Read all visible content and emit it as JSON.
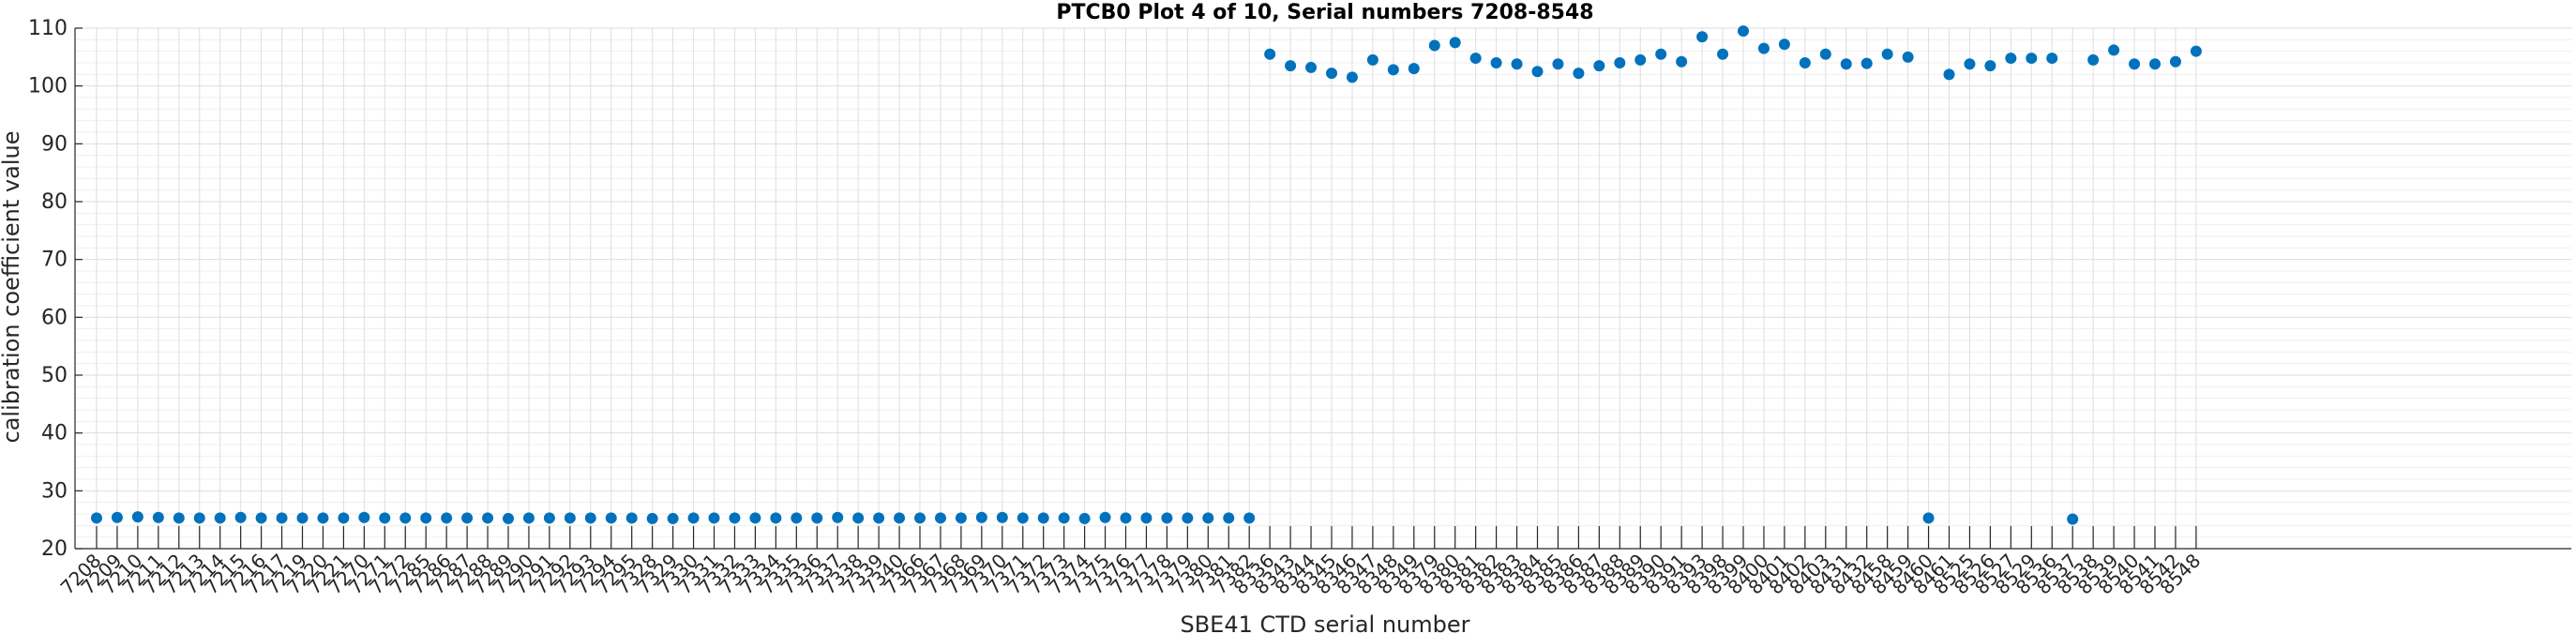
{
  "chart_data": {
    "type": "scatter",
    "title": "PTCB0 Plot 4 of 10, Serial numbers 7208-8548",
    "xlabel": "SBE41 CTD serial number",
    "ylabel": "calibration coefficient value",
    "ylim": [
      20,
      110
    ],
    "yticks": [
      "20",
      "30",
      "40",
      "50",
      "60",
      "70",
      "80",
      "90",
      "100",
      "110"
    ],
    "grid": true,
    "marker_color": "#0072BD",
    "categories": [
      "7208",
      "7209",
      "7210",
      "7211",
      "7212",
      "7213",
      "7214",
      "7215",
      "7216",
      "7217",
      "7219",
      "7220",
      "7221",
      "7270",
      "7271",
      "7272",
      "7285",
      "7286",
      "7287",
      "7288",
      "7289",
      "7290",
      "7291",
      "7292",
      "7293",
      "7294",
      "7295",
      "7328",
      "7329",
      "7330",
      "7331",
      "7332",
      "7333",
      "7334",
      "7335",
      "7336",
      "7337",
      "7338",
      "7339",
      "7340",
      "7366",
      "7367",
      "7368",
      "7369",
      "7370",
      "7371",
      "7372",
      "7373",
      "7374",
      "7375",
      "7376",
      "7377",
      "7378",
      "7379",
      "7380",
      "7381",
      "7382",
      "8336",
      "8343",
      "8344",
      "8345",
      "8346",
      "8347",
      "8348",
      "8349",
      "8379",
      "8380",
      "8381",
      "8382",
      "8383",
      "8384",
      "8385",
      "8386",
      "8387",
      "8388",
      "8389",
      "8390",
      "8391",
      "8393",
      "8398",
      "8399",
      "8400",
      "8401",
      "8402",
      "8403",
      "8431",
      "8432",
      "8458",
      "8459",
      "8460",
      "8461",
      "8525",
      "8526",
      "8527",
      "8529",
      "8536",
      "8537",
      "8538",
      "8539",
      "8540",
      "8541",
      "8542",
      "8548"
    ],
    "values": [
      25.3,
      25.4,
      25.5,
      25.4,
      25.3,
      25.3,
      25.3,
      25.4,
      25.3,
      25.3,
      25.3,
      25.3,
      25.3,
      25.4,
      25.3,
      25.3,
      25.3,
      25.3,
      25.3,
      25.3,
      25.2,
      25.3,
      25.3,
      25.3,
      25.3,
      25.3,
      25.3,
      25.2,
      25.2,
      25.3,
      25.3,
      25.3,
      25.3,
      25.3,
      25.3,
      25.3,
      25.4,
      25.3,
      25.3,
      25.3,
      25.3,
      25.3,
      25.3,
      25.4,
      25.4,
      25.3,
      25.3,
      25.3,
      25.2,
      25.4,
      25.3,
      25.3,
      25.3,
      25.3,
      25.3,
      25.3,
      25.3,
      105.5,
      103.5,
      103.2,
      102.2,
      101.5,
      104.5,
      102.8,
      103.0,
      107.0,
      107.5,
      104.8,
      104.0,
      103.8,
      102.5,
      103.8,
      102.2,
      103.5,
      104.0,
      104.5,
      105.5,
      104.2,
      108.5,
      105.5,
      109.5,
      106.5,
      107.2,
      104.0,
      105.5,
      103.8,
      103.9,
      105.5,
      105.0,
      25.3,
      102.0,
      103.8,
      103.5,
      104.8,
      104.8,
      104.8,
      25.1,
      104.5,
      106.2,
      103.8,
      103.8,
      104.2,
      106.0
    ]
  }
}
